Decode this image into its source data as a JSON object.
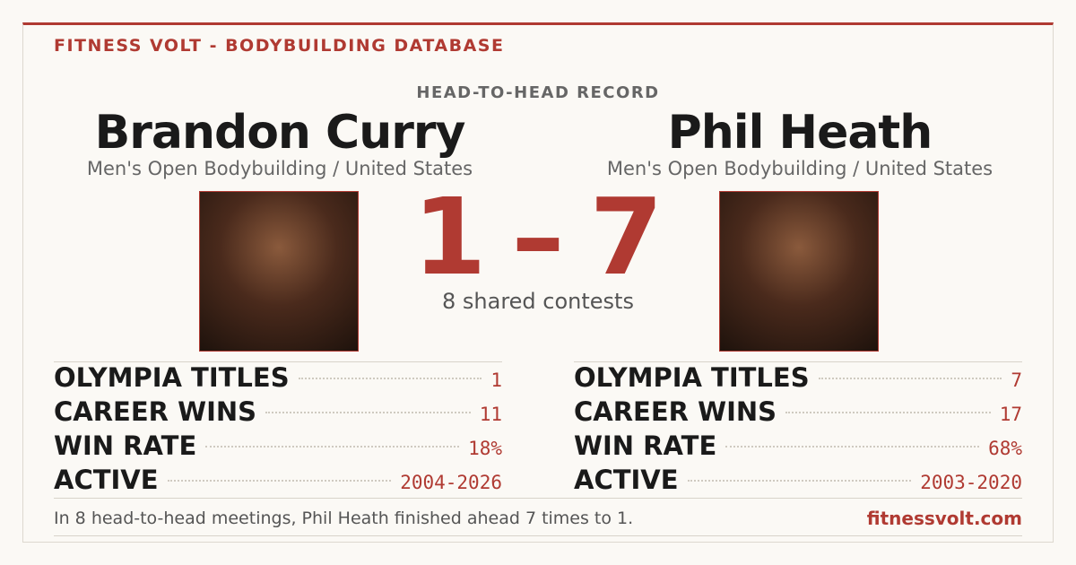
{
  "header": {
    "brand": "FITNESS VOLT - BODYBUILDING DATABASE",
    "title": "HEAD-TO-HEAD RECORD"
  },
  "players": [
    {
      "name": "Brandon Curry",
      "division": "Men's Open Bodybuilding / United States",
      "stats": [
        {
          "label": "OLYMPIA TITLES",
          "value": 1
        },
        {
          "label": "CAREER WINS",
          "value": 11
        },
        {
          "label": "WIN RATE",
          "value": "18%"
        },
        {
          "label": "ACTIVE",
          "value": "2004-2026"
        }
      ]
    },
    {
      "name": "Phil Heath",
      "division": "Men's Open Bodybuilding / United States",
      "stats": [
        {
          "label": "OLYMPIA TITLES",
          "value": 7
        },
        {
          "label": "CAREER WINS",
          "value": 17
        },
        {
          "label": "WIN RATE",
          "value": "68%"
        },
        {
          "label": "ACTIVE",
          "value": "2003-2020"
        }
      ]
    }
  ],
  "score": {
    "left": 1,
    "separator": "–",
    "right": 7,
    "caption": "8 shared contests"
  },
  "footer": {
    "summary": "In 8 head-to-head meetings, Phil Heath finished ahead 7 times to 1.",
    "site": "fitnessvolt.com"
  }
}
